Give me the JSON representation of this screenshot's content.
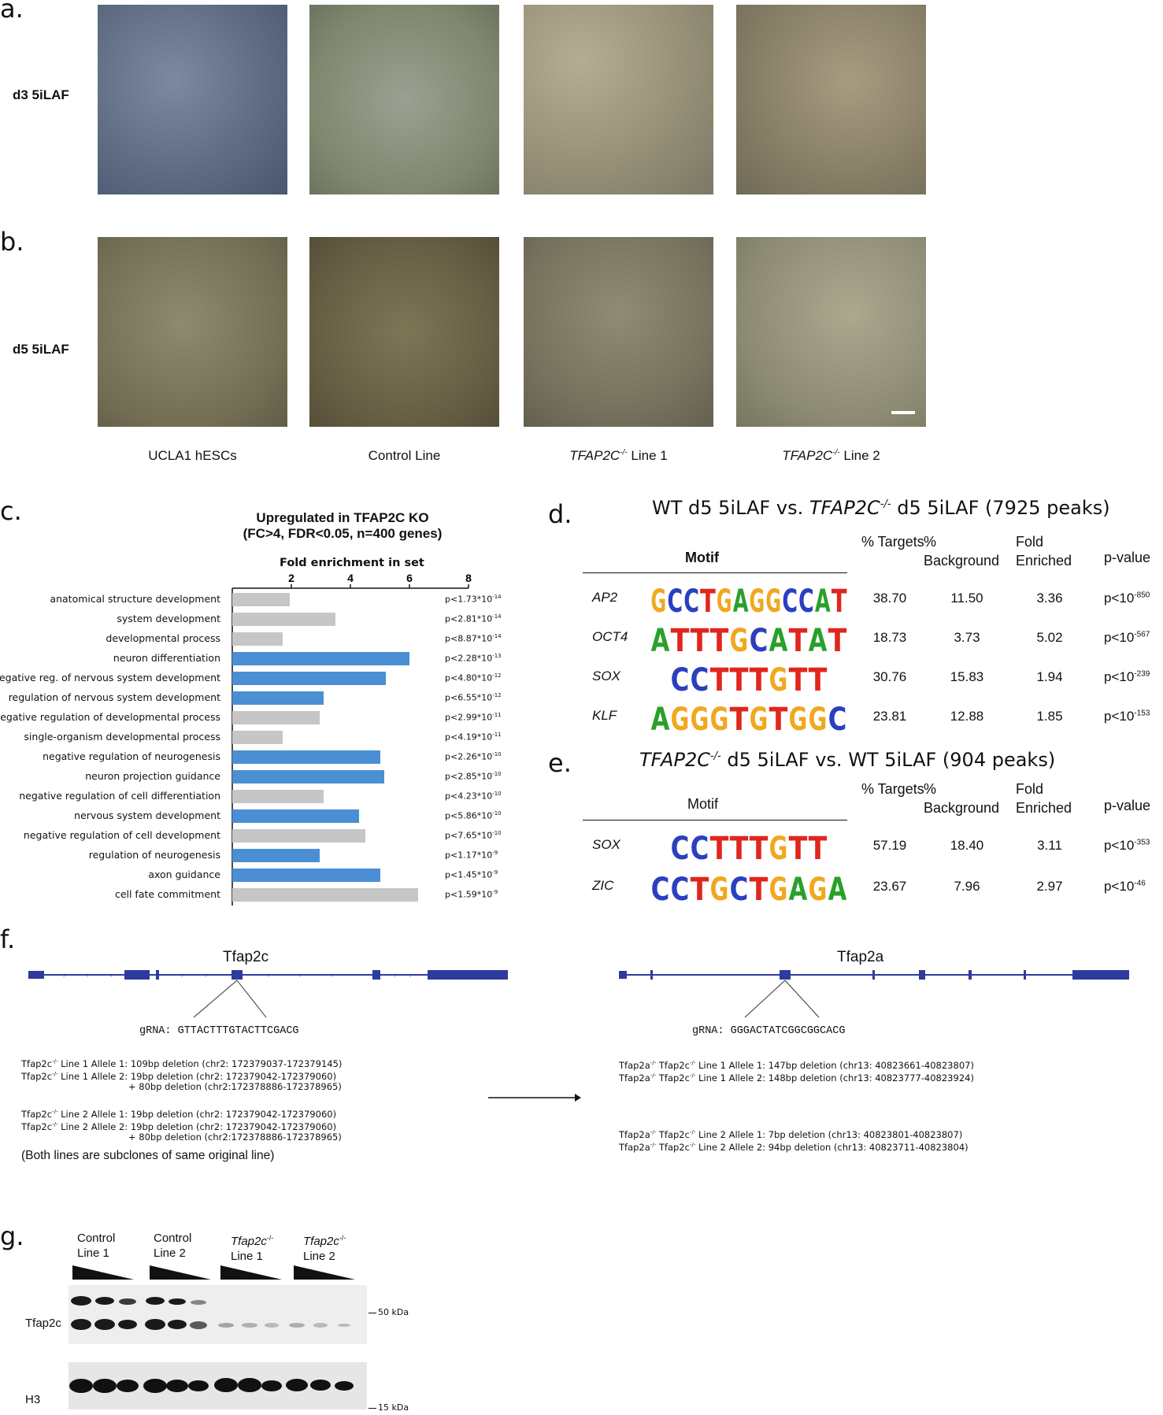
{
  "panel_labels": {
    "a": "a.",
    "b": "b.",
    "c": "c.",
    "d": "d.",
    "e": "e.",
    "f": "f.",
    "g": "g."
  },
  "row_labels": {
    "a": "d3 5iLAF",
    "b": "d5 5iLAF"
  },
  "column_captions": [
    {
      "plain": "UCLA1 hESCs"
    },
    {
      "plain": "Control Line"
    },
    {
      "gene": "TFAP2C",
      "sup": "-/-",
      "rest": " Line 1"
    },
    {
      "gene": "TFAP2C",
      "sup": "-/-",
      "rest": " Line 2"
    }
  ],
  "colors": {
    "bar_gray": "#c6c6c6",
    "bar_blue": "#4a8fd4",
    "gene_model_blue": "#2e3a9e"
  },
  "chart_data": {
    "type": "bar",
    "orientation": "horizontal",
    "title_line1": "Upregulated in TFAP2C KO",
    "title_line2": "(FC>4, FDR<0.05, n=400 genes)",
    "xlabel": "Fold enrichment in set",
    "xticks": [
      "2",
      "4",
      "6",
      "8"
    ],
    "xlim": [
      0,
      8
    ],
    "categories": [
      "anatomical structure development",
      "system development",
      "developmental process",
      "neuron differentiation",
      "negative reg. of nervous system development",
      "regulation of nervous system development",
      "negative regulation of developmental process",
      "single-organism developmental process",
      "negative regulation of neurogenesis",
      "neuron projection guidance",
      "negative regulation of cell differentiation",
      "nervous system development",
      "negative regulation of cell development",
      "regulation of neurogenesis",
      "axon guidance",
      "cell fate commitment"
    ],
    "values": [
      1.95,
      3.5,
      1.7,
      6.0,
      5.2,
      3.1,
      2.95,
      1.7,
      5.0,
      5.15,
      3.1,
      4.3,
      4.5,
      2.95,
      5.0,
      6.3
    ],
    "highlight": [
      false,
      false,
      false,
      true,
      true,
      true,
      false,
      false,
      true,
      true,
      false,
      true,
      false,
      true,
      true,
      false
    ],
    "pvalues": [
      {
        "m": "1.73",
        "e": "-14"
      },
      {
        "m": "2.81",
        "e": "-14"
      },
      {
        "m": "8.87",
        "e": "-14"
      },
      {
        "m": "2.28",
        "e": "-13"
      },
      {
        "m": "4.80",
        "e": "-12"
      },
      {
        "m": "6.55",
        "e": "-12"
      },
      {
        "m": "2.99",
        "e": "-11"
      },
      {
        "m": "4.19",
        "e": "-11"
      },
      {
        "m": "2.26",
        "e": "-10"
      },
      {
        "m": "2.85",
        "e": "-10"
      },
      {
        "m": "4.23",
        "e": "-10"
      },
      {
        "m": "5.86",
        "e": "-10"
      },
      {
        "m": "7.65",
        "e": "-10"
      },
      {
        "m": "1.17",
        "e": "-9"
      },
      {
        "m": "1.45",
        "e": "-9"
      },
      {
        "m": "1.59",
        "e": "-9"
      }
    ]
  },
  "motif_d": {
    "title_pre": "WT d5 5iLAF vs. ",
    "title_gene": "TFAP2C",
    "title_sup": "-/-",
    "title_post": " d5 5iLAF (7925 peaks)",
    "headers": {
      "motif": "Motif",
      "targets": "% Targets",
      "background": "% Background",
      "fold": "Fold Enriched",
      "pvalue": "p-value"
    },
    "rows": [
      {
        "gene": "AP2",
        "logo": "GCCTGAGGCCAT",
        "targets": "38.70",
        "background": "11.50",
        "fold": "3.36",
        "p_exp": "-850"
      },
      {
        "gene": "OCT4",
        "logo": "ATTTGCATAT",
        "targets": "18.73",
        "background": "3.73",
        "fold": "5.02",
        "p_exp": "-567"
      },
      {
        "gene": "SOX",
        "logo": "CCTTTGTT",
        "targets": "30.76",
        "background": "15.83",
        "fold": "1.94",
        "p_exp": "-239"
      },
      {
        "gene": "KLF",
        "logo": "AGGGTGTGGC",
        "targets": "23.81",
        "background": "12.88",
        "fold": "1.85",
        "p_exp": "-153"
      }
    ]
  },
  "motif_e": {
    "title_gene": "TFAP2C",
    "title_sup": "-/-",
    "title_post": " d5 5iLAF vs. WT 5iLAF (904 peaks)",
    "headers": {
      "motif": "Motif",
      "targets": "% Targets",
      "background": "% Background",
      "fold": "Fold Enriched",
      "pvalue": "p-value"
    },
    "rows": [
      {
        "gene": "SOX",
        "logo": "CCTTTGTT",
        "targets": "57.19",
        "background": "18.40",
        "fold": "3.11",
        "p_exp": "-353"
      },
      {
        "gene": "ZIC",
        "logo": "CCTGCTGAGA",
        "targets": "23.67",
        "background": "7.96",
        "fold": "2.97",
        "p_exp": "-46"
      }
    ]
  },
  "panel_f": {
    "left_gene": "Tfap2c",
    "left_grna": "gRNA: GTTACTTTGTACTTCGACG",
    "left_alleles": [
      {
        "pre": "Tfap2c",
        "sup": "-/-",
        "text": " Line 1 Allele 1: 109bp deletion (chr2: 172379037-172379145)"
      },
      {
        "pre": "Tfap2c",
        "sup": "-/-",
        "text": " Line 1 Allele 2: 19bp deletion (chr2: 172379042-172379060)"
      },
      {
        "pre": "",
        "sup": "",
        "text": "+ 80bp deletion (chr2:172378886-172378965)"
      },
      {
        "pre": "Tfap2c",
        "sup": "-/-",
        "text": " Line 2 Allele 1: 19bp deletion (chr2: 172379042-172379060)"
      },
      {
        "pre": "Tfap2c",
        "sup": "-/-",
        "text": " Line 2 Allele 2: 19bp deletion (chr2: 172379042-172379060)"
      },
      {
        "pre": "",
        "sup": "",
        "text": "+ 80bp deletion (chr2:172378886-172378965)"
      }
    ],
    "note": "(Both lines are subclones of same original line)",
    "right_gene": "Tfap2a",
    "right_grna": "gRNA: GGGACTATCGGCGGCACG",
    "right_alleles": [
      {
        "text": " Line 1 Allele 1: 147bp deletion (chr13: 40823661-40823807)"
      },
      {
        "text": " Line 1 Allele 2: 148bp deletion (chr13: 40823777-40823924)"
      },
      {
        "text": " Line 2 Allele 1: 7bp deletion (chr13: 40823801-40823807)"
      },
      {
        "text": " Line 2 Allele 2: 94bp deletion (chr13: 40823711-40823804)"
      }
    ],
    "right_prefix_a": "Tfap2a",
    "right_prefix_c": "Tfap2c",
    "ko_sup": "-/-"
  },
  "panel_g": {
    "lanes": [
      {
        "l1": "Control",
        "l2": "Line 1",
        "italic": false
      },
      {
        "l1": "Control",
        "l2": "Line 2",
        "italic": false
      },
      {
        "l1": "Tfap2c",
        "sup": "-/-",
        "l2": "Line 1",
        "italic": true
      },
      {
        "l1": "Tfap2c",
        "sup": "-/-",
        "l2": "Line 2",
        "italic": true
      }
    ],
    "row1": "Tfap2c",
    "row2": "H3",
    "marker1": "50 kDa",
    "marker2": "15 kDa"
  }
}
